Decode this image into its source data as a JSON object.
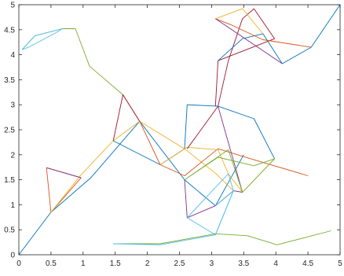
{
  "chart_data": {
    "type": "line",
    "title": "",
    "xlabel": "",
    "ylabel": "",
    "xlim": [
      0,
      5
    ],
    "ylim": [
      0,
      5
    ],
    "x_ticks": [
      "0",
      "0.5",
      "1",
      "1.5",
      "2",
      "2.5",
      "3",
      "3.5",
      "4",
      "4.5",
      "5"
    ],
    "y_ticks": [
      "0",
      "0.5",
      "1",
      "1.5",
      "2",
      "2.5",
      "3",
      "3.5",
      "4",
      "4.5",
      "5"
    ],
    "grid": false,
    "box": true,
    "colors": [
      "#0072BD",
      "#D95319",
      "#EDB120",
      "#7E2F8E",
      "#77AC30",
      "#4DBEEE",
      "#A2142F"
    ],
    "series": [
      {
        "x": [
          0.0,
          0.5,
          1.12,
          1.88,
          2.58,
          3.06,
          3.5
        ],
        "y": [
          0.0,
          0.85,
          1.54,
          2.67,
          1.5,
          0.98,
          2.0
        ]
      },
      {
        "x": [
          0.43,
          0.5,
          0.97,
          0.43
        ],
        "y": [
          1.74,
          0.85,
          1.54,
          1.74
        ]
      },
      {
        "x": [
          0.5,
          0.97,
          1.47,
          1.88,
          2.58,
          3.06,
          3.34
        ],
        "y": [
          0.85,
          1.6,
          2.28,
          2.67,
          2.12,
          1.63,
          1.28
        ]
      },
      {
        "x": [
          0.43,
          0.97
        ],
        "y": [
          1.74,
          1.54
        ]
      },
      {
        "x": [
          0.05,
          0.25,
          0.68,
          0.88,
          1.1,
          1.62,
          1.88
        ],
        "y": [
          4.1,
          4.38,
          4.52,
          4.52,
          3.77,
          3.2,
          2.67
        ]
      },
      {
        "x": [
          0.05,
          0.15,
          0.55,
          0.68,
          0.25,
          0.05
        ],
        "y": [
          4.1,
          4.15,
          4.42,
          4.52,
          4.38,
          4.1
        ]
      },
      {
        "x": [
          1.47,
          1.62,
          1.88
        ],
        "y": [
          2.28,
          3.2,
          2.67
        ]
      },
      {
        "x": [
          1.47,
          2.2,
          2.58,
          2.62,
          3.1,
          3.66,
          3.98
        ],
        "y": [
          2.28,
          1.8,
          2.12,
          3.0,
          2.97,
          2.72,
          1.92
        ]
      },
      {
        "x": [
          1.88,
          2.2,
          2.58,
          3.1,
          3.66,
          4.5
        ],
        "y": [
          2.67,
          1.8,
          1.58,
          2.12,
          1.9,
          1.58
        ]
      },
      {
        "x": [
          2.2,
          2.62,
          3.1,
          3.26,
          3.48,
          3.98
        ],
        "y": [
          1.8,
          2.15,
          2.1,
          1.62,
          1.25,
          1.92
        ]
      },
      {
        "x": [
          2.58,
          2.62,
          3.06,
          3.34,
          3.48,
          3.1
        ],
        "y": [
          1.5,
          0.74,
          0.98,
          1.28,
          1.25,
          2.97
        ]
      },
      {
        "x": [
          2.58,
          3.1,
          3.66,
          3.98,
          3.48,
          3.26,
          2.58
        ],
        "y": [
          1.5,
          1.95,
          1.78,
          1.92,
          1.25,
          2.1,
          1.5
        ]
      },
      {
        "x": [
          2.62,
          3.06,
          3.34,
          3.26,
          2.62
        ],
        "y": [
          0.74,
          0.4,
          1.28,
          1.62,
          0.74
        ]
      },
      {
        "x": [
          2.62,
          3.1,
          3.26,
          3.48,
          3.66,
          3.98,
          3.1,
          3.06
        ],
        "y": [
          2.12,
          2.97,
          3.88,
          4.72,
          4.92,
          4.32,
          3.88,
          2.97
        ]
      },
      {
        "x": [
          3.1,
          3.48,
          3.8,
          4.1,
          4.55,
          5.0
        ],
        "y": [
          3.88,
          4.32,
          4.42,
          3.82,
          4.15,
          5.0
        ]
      },
      {
        "x": [
          3.06,
          3.3,
          3.8,
          4.55
        ],
        "y": [
          4.72,
          4.6,
          4.3,
          4.15
        ]
      },
      {
        "x": [
          3.06,
          3.48,
          3.8
        ],
        "y": [
          4.72,
          4.92,
          4.42
        ]
      },
      {
        "x": [
          3.06,
          4.1
        ],
        "y": [
          4.72,
          3.82
        ]
      },
      {
        "x": [
          1.47,
          2.2,
          3.06,
          3.56,
          4.02,
          4.86
        ],
        "y": [
          0.22,
          0.22,
          0.42,
          0.38,
          0.2,
          0.48
        ]
      },
      {
        "x": [
          1.47,
          2.2,
          3.06,
          3.34,
          3.06
        ],
        "y": [
          0.22,
          0.2,
          0.4,
          1.28,
          0.98
        ]
      }
    ]
  }
}
